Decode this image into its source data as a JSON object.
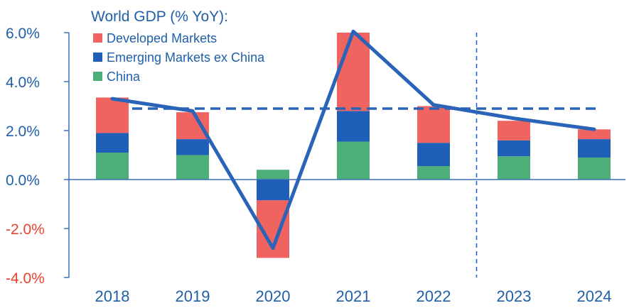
{
  "chart_data": {
    "type": "bar",
    "title": "World GDP (% YoY):",
    "xlabel": "",
    "ylabel": "",
    "categories": [
      "2018",
      "2019",
      "2020",
      "2021",
      "2022",
      "2023",
      "2024"
    ],
    "stacked": true,
    "series": [
      {
        "name": "China",
        "color": "#4caf7a",
        "values": [
          1.1,
          1.0,
          0.4,
          1.55,
          0.55,
          0.95,
          0.9
        ]
      },
      {
        "name": "Emerging Markets ex China",
        "color": "#1f5fb8",
        "values": [
          0.8,
          0.65,
          -0.85,
          1.25,
          0.95,
          0.65,
          0.75
        ]
      },
      {
        "name": "Developed Markets",
        "color": "#ef6461",
        "values": [
          1.45,
          1.1,
          -2.35,
          3.2,
          1.5,
          0.8,
          0.4
        ]
      }
    ],
    "line": {
      "values": [
        3.3,
        2.8,
        -2.8,
        6.05,
        3.05,
        2.5,
        2.05
      ],
      "color": "#2a64b8"
    },
    "reference_line": {
      "value": 2.9,
      "style": "dashed",
      "color": "#2a64b8"
    },
    "forecast_divider": {
      "after_category": "2022",
      "style": "dashed"
    },
    "yticks": [
      "6.0%",
      "4.0%",
      "2.0%",
      "0.0%",
      "-2.0%",
      "-4.0%"
    ],
    "ytick_values": [
      6,
      4,
      2,
      0,
      -2,
      -4
    ],
    "ylim": [
      -4,
      6
    ],
    "colors": {
      "positive_tick": "#1f5fa8",
      "negative_tick": "#e8432e",
      "axis": "#3a6fb8"
    },
    "grid": false,
    "legend_placement": "top-left"
  }
}
